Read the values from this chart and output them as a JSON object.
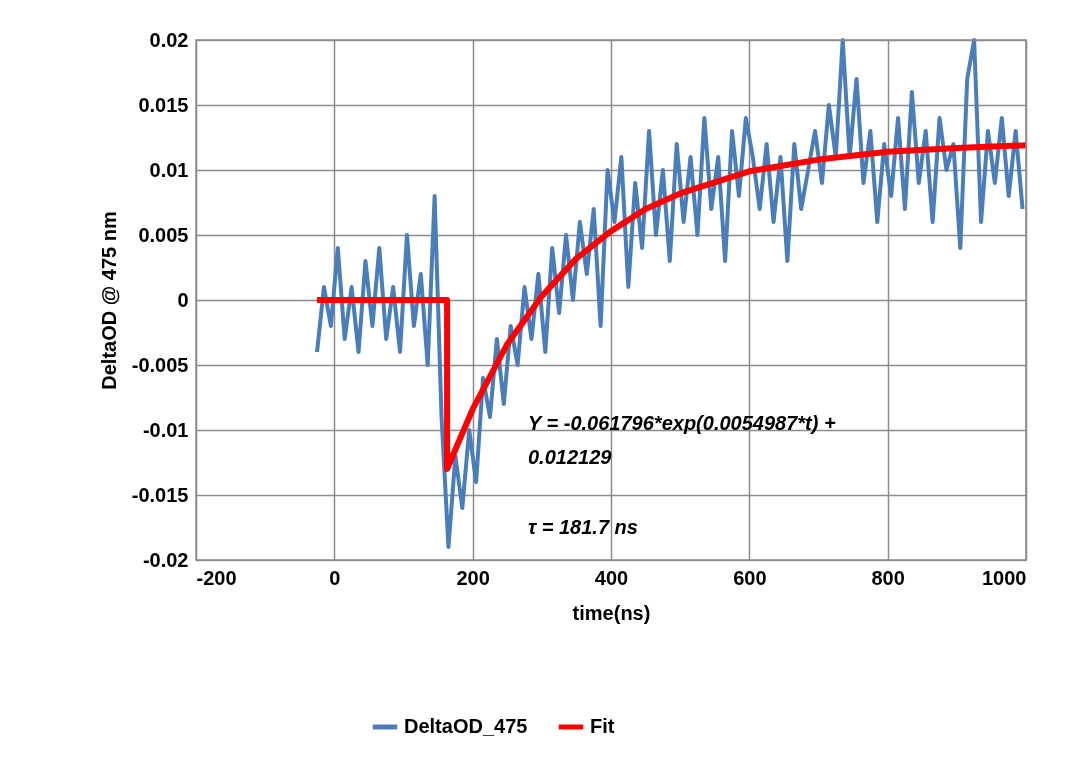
{
  "chart_data": {
    "type": "line",
    "xlabel": "time(ns)",
    "ylabel": "DeltaOD @ 475 nm",
    "xlim": [
      -200,
      1000
    ],
    "xticks": [
      -200,
      0,
      200,
      400,
      600,
      800,
      1000
    ],
    "ylim": [
      -0.02,
      0.02
    ],
    "yticks": [
      -0.02,
      -0.015,
      -0.01,
      -0.005,
      0,
      0.005,
      0.01,
      0.015,
      0.02
    ],
    "grid": true,
    "legend": "bottom",
    "marker": "none",
    "line_style": "solid",
    "annotations": [
      "Y = -0.061796*exp(0.0054987*t) +\n0.012129",
      "τ = 181.7 ns"
    ],
    "series": [
      {
        "name": "DeltaOD_475",
        "color": "#4a7ebb",
        "x": [
          -25,
          -15,
          -5,
          5,
          15,
          25,
          35,
          45,
          55,
          65,
          75,
          85,
          95,
          105,
          115,
          125,
          135,
          145,
          155,
          165,
          175,
          185,
          195,
          205,
          215,
          225,
          235,
          245,
          255,
          265,
          275,
          285,
          295,
          305,
          315,
          325,
          335,
          345,
          355,
          365,
          375,
          385,
          395,
          405,
          415,
          425,
          435,
          445,
          455,
          465,
          475,
          485,
          495,
          505,
          515,
          525,
          535,
          545,
          555,
          565,
          575,
          585,
          595,
          605,
          615,
          625,
          635,
          645,
          655,
          665,
          675,
          685,
          695,
          705,
          715,
          725,
          735,
          745,
          755,
          765,
          775,
          785,
          795,
          805,
          815,
          825,
          835,
          845,
          855,
          865,
          875,
          885,
          895,
          905,
          915,
          925,
          935,
          945,
          955,
          965,
          975,
          985,
          995
        ],
        "values": [
          -0.004,
          0.001,
          -0.002,
          0.004,
          -0.003,
          0.001,
          -0.004,
          0.003,
          -0.002,
          0.004,
          -0.003,
          0.001,
          -0.004,
          0.005,
          -0.002,
          0.002,
          -0.005,
          0.008,
          -0.009,
          -0.019,
          -0.012,
          -0.016,
          -0.01,
          -0.014,
          -0.006,
          -0.009,
          -0.003,
          -0.008,
          -0.002,
          -0.005,
          0.001,
          -0.003,
          0.002,
          -0.004,
          0.004,
          -0.001,
          0.005,
          0.0,
          0.006,
          0.002,
          0.007,
          -0.002,
          0.01,
          0.006,
          0.011,
          0.001,
          0.009,
          0.004,
          0.013,
          0.005,
          0.01,
          0.003,
          0.012,
          0.006,
          0.011,
          0.005,
          0.014,
          0.007,
          0.011,
          0.003,
          0.013,
          0.008,
          0.014,
          0.011,
          0.007,
          0.012,
          0.006,
          0.011,
          0.003,
          0.012,
          0.007,
          0.01,
          0.013,
          0.009,
          0.015,
          0.011,
          0.02,
          0.011,
          0.017,
          0.009,
          0.013,
          0.006,
          0.012,
          0.008,
          0.014,
          0.007,
          0.016,
          0.009,
          0.013,
          0.006,
          0.014,
          0.01,
          0.012,
          0.004,
          0.017,
          0.02,
          0.006,
          0.013,
          0.009,
          0.014,
          0.008,
          0.013,
          0.007
        ]
      },
      {
        "name": "Fit",
        "color": "#ff0000",
        "x": [
          -25,
          0,
          163,
          163,
          200,
          250,
          300,
          350,
          400,
          450,
          500,
          600,
          700,
          800,
          900,
          1000
        ],
        "values": [
          0,
          0,
          0,
          -0.013,
          -0.0084,
          -0.0034,
          0.0003,
          0.0032,
          0.0053,
          0.007,
          0.0082,
          0.0099,
          0.0108,
          0.0114,
          0.0117,
          0.0119
        ]
      }
    ]
  }
}
